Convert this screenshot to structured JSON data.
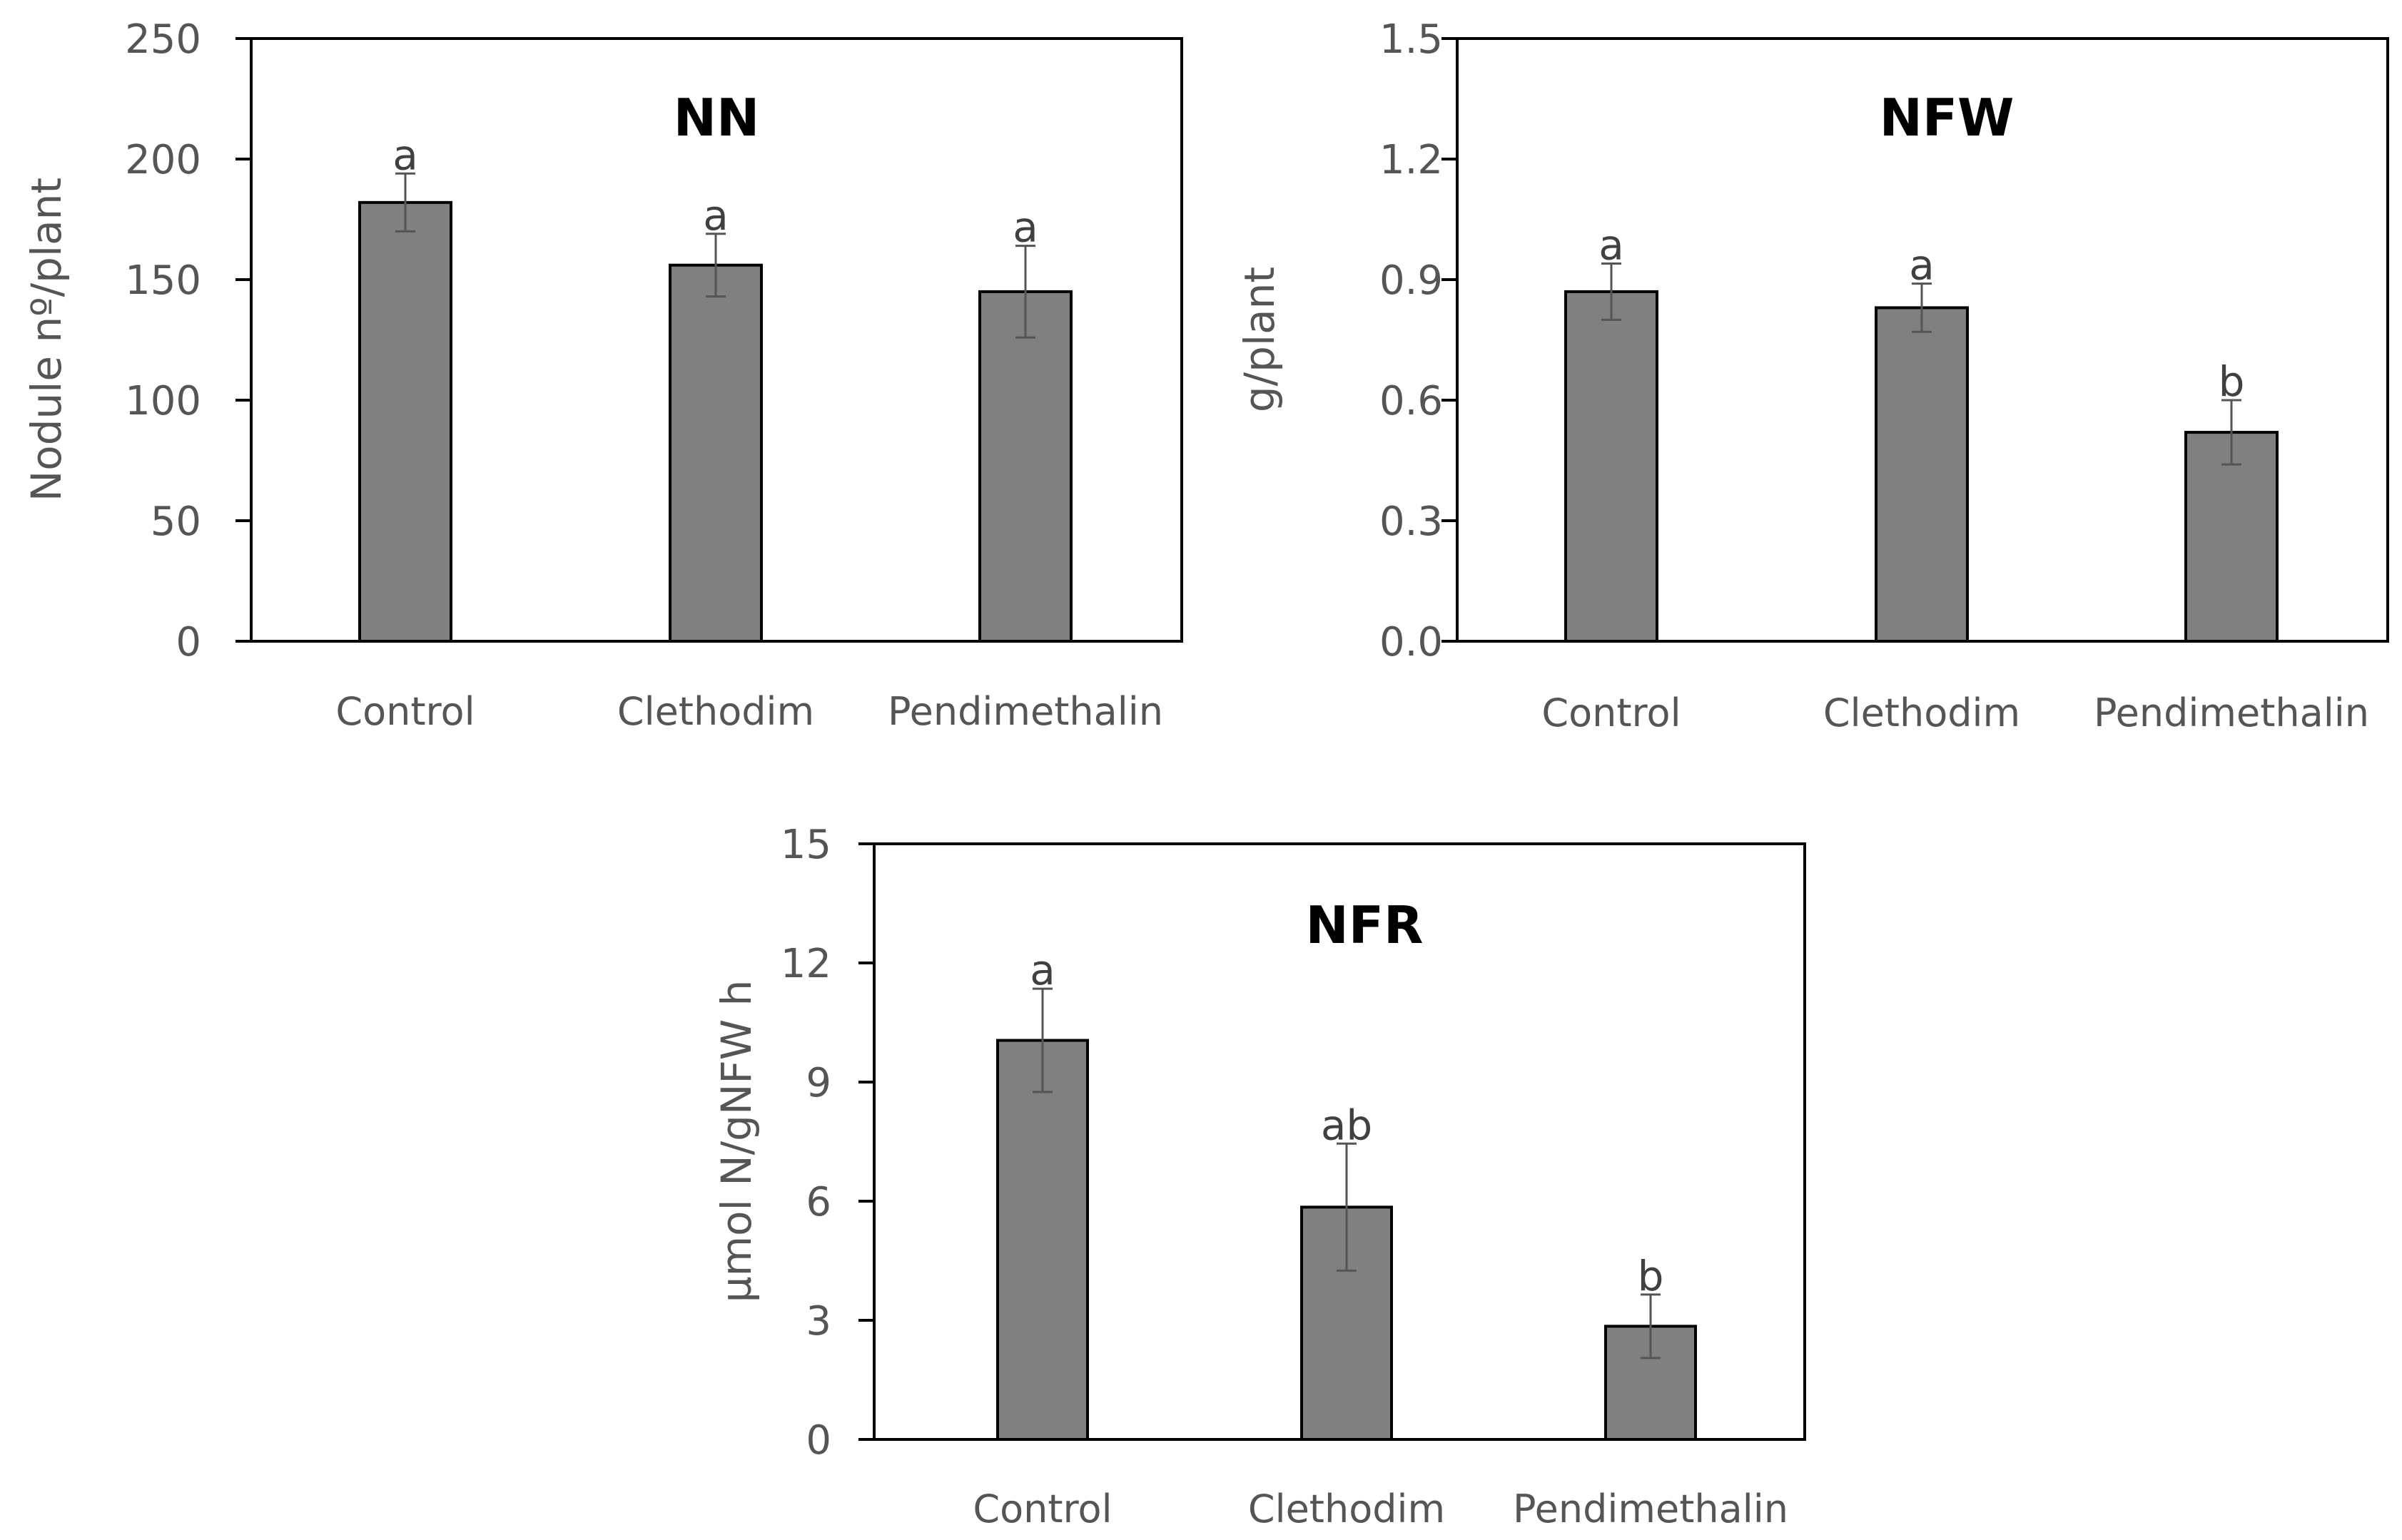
{
  "chart_data": [
    {
      "type": "bar",
      "title": "NN",
      "xlabel": "",
      "ylabel": "Nodule nº/plant",
      "ylim": [
        0,
        250
      ],
      "yticks": [
        "0",
        "50",
        "100",
        "150",
        "200",
        "250"
      ],
      "categories": [
        "Control",
        "Clethodim",
        "Pendimethalin"
      ],
      "values": [
        182,
        156,
        145
      ],
      "errors": [
        12,
        13,
        19
      ],
      "significance": [
        "a",
        "a",
        "a"
      ],
      "colors": {
        "bar": "#808080",
        "bar_edge": "#000000",
        "axis": "#000000",
        "error": "#555555"
      }
    },
    {
      "type": "bar",
      "title": "NFW",
      "xlabel": "",
      "ylabel": "g/plant",
      "ylim": [
        0,
        1.5
      ],
      "yticks": [
        "0.0",
        "0.3",
        "0.6",
        "0.9",
        "1.2",
        "1.5"
      ],
      "categories": [
        "Control",
        "Clethodim",
        "Pendimethalin"
      ],
      "values": [
        0.87,
        0.83,
        0.52
      ],
      "errors": [
        0.07,
        0.06,
        0.08
      ],
      "significance": [
        "a",
        "a",
        "b"
      ],
      "colors": {
        "bar": "#808080",
        "bar_edge": "#000000",
        "axis": "#000000",
        "error": "#555555"
      }
    },
    {
      "type": "bar",
      "title": "NFR",
      "xlabel": "",
      "ylabel": "µmol N/gNFW h",
      "ylim": [
        0,
        15
      ],
      "yticks": [
        "0",
        "3",
        "6",
        "9",
        "12",
        "15"
      ],
      "categories": [
        "Control",
        "Clethodim",
        "Pendimethalin"
      ],
      "values": [
        10.05,
        5.85,
        2.85
      ],
      "errors": [
        1.3,
        1.6,
        0.8
      ],
      "significance": [
        "a",
        "ab",
        "b"
      ],
      "colors": {
        "bar": "#808080",
        "bar_edge": "#000000",
        "axis": "#000000",
        "error": "#555555"
      }
    }
  ]
}
